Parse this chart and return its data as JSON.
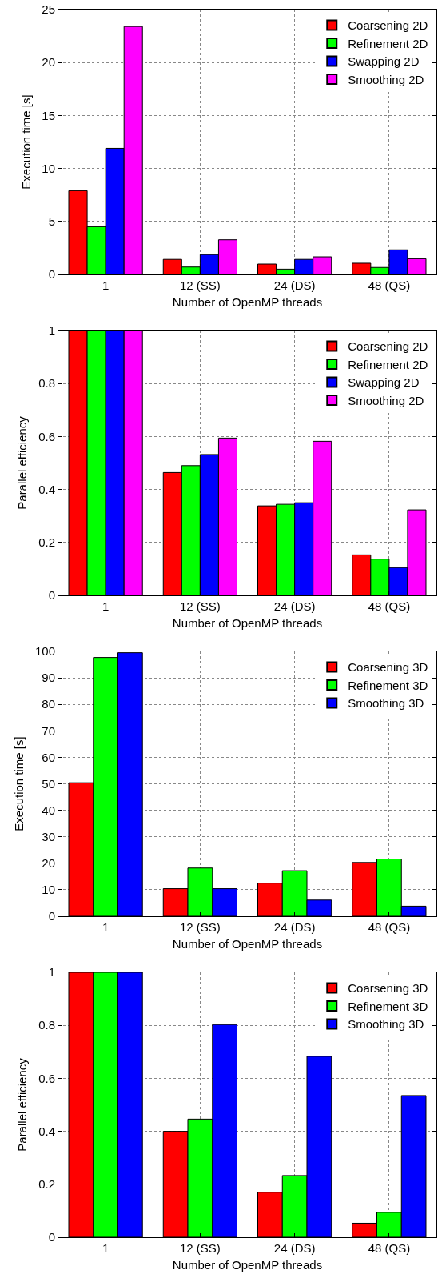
{
  "chart_data": [
    {
      "type": "bar",
      "xlabel": "Number of OpenMP threads",
      "ylabel": "Execution time [s]",
      "categories": [
        "1",
        "12 (SS)",
        "24 (DS)",
        "48 (QS)"
      ],
      "ylim": [
        0,
        25
      ],
      "yticks": [
        0,
        5,
        10,
        15,
        20,
        25
      ],
      "grid": true,
      "legend": "top right",
      "series": [
        {
          "name": "Coarsening 2D",
          "color": "#ff0000",
          "values": [
            7.9,
            1.42,
            0.98,
            1.06
          ]
        },
        {
          "name": "Refinement 2D",
          "color": "#00ff00",
          "values": [
            4.5,
            0.7,
            0.5,
            0.66
          ]
        },
        {
          "name": "Swapping 2D",
          "color": "#0000ff",
          "values": [
            11.9,
            1.87,
            1.42,
            2.32
          ]
        },
        {
          "name": "Smoothing 2D",
          "color": "#ff00ff",
          "values": [
            23.4,
            3.27,
            1.66,
            1.48
          ]
        }
      ]
    },
    {
      "type": "bar",
      "xlabel": "Number of OpenMP threads",
      "ylabel": "Parallel efficiency",
      "categories": [
        "1",
        "12 (SS)",
        "24 (DS)",
        "48 (QS)"
      ],
      "ylim": [
        0,
        1
      ],
      "yticks": [
        0,
        0.2,
        0.4,
        0.6,
        0.8,
        1
      ],
      "grid": true,
      "legend": "top right",
      "series": [
        {
          "name": "Coarsening 2D",
          "color": "#ff0000",
          "values": [
            1,
            0.464,
            0.338,
            0.153
          ]
        },
        {
          "name": "Refinement 2D",
          "color": "#00ff00",
          "values": [
            1,
            0.49,
            0.344,
            0.137
          ]
        },
        {
          "name": "Swapping 2D",
          "color": "#0000ff",
          "values": [
            1,
            0.532,
            0.35,
            0.105
          ]
        },
        {
          "name": "Smoothing 2D",
          "color": "#ff00ff",
          "values": [
            1,
            0.594,
            0.582,
            0.323
          ]
        }
      ]
    },
    {
      "type": "bar",
      "xlabel": "Number of OpenMP threads",
      "ylabel": "Execution time [s]",
      "categories": [
        "1",
        "12 (SS)",
        "24 (DS)",
        "48 (QS)"
      ],
      "ylim": [
        0,
        100
      ],
      "yticks": [
        0,
        10,
        20,
        30,
        40,
        50,
        60,
        70,
        80,
        90,
        100
      ],
      "grid": true,
      "legend": "top right",
      "series": [
        {
          "name": "Coarsening 3D",
          "color": "#ff0000",
          "values": [
            50.4,
            10.4,
            12.5,
            20.3
          ]
        },
        {
          "name": "Refinement 3D",
          "color": "#00ff00",
          "values": [
            97.7,
            18.2,
            17.2,
            21.6
          ]
        },
        {
          "name": "Smoothing 3D",
          "color": "#0000ff",
          "values": [
            99.5,
            10.4,
            6.1,
            3.8
          ]
        }
      ]
    },
    {
      "type": "bar",
      "xlabel": "Number of OpenMP threads",
      "ylabel": "Parallel efficiency",
      "categories": [
        "1",
        "12 (SS)",
        "24 (DS)",
        "48 (QS)"
      ],
      "ylim": [
        0,
        1
      ],
      "yticks": [
        0,
        0.2,
        0.4,
        0.6,
        0.8,
        1
      ],
      "grid": true,
      "legend": "top right",
      "series": [
        {
          "name": "Coarsening 3D",
          "color": "#ff0000",
          "values": [
            1,
            0.4,
            0.17,
            0.053
          ]
        },
        {
          "name": "Refinement 3D",
          "color": "#00ff00",
          "values": [
            1,
            0.446,
            0.233,
            0.094
          ]
        },
        {
          "name": "Smoothing 3D",
          "color": "#0000ff",
          "values": [
            1,
            0.803,
            0.683,
            0.535
          ]
        }
      ]
    }
  ]
}
